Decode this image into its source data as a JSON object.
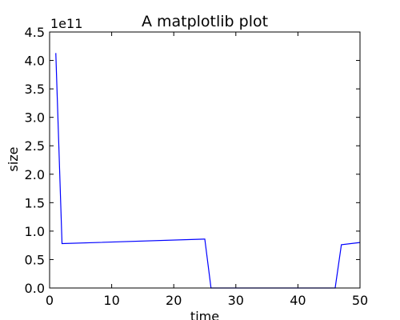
{
  "chart_data": {
    "type": "line",
    "title": "A matplotlib plot",
    "xlabel": "time",
    "ylabel": "size",
    "y_offset_label": "1e11",
    "xlim": [
      0,
      50
    ],
    "ylim": [
      0,
      4.5
    ],
    "y_scale_factor": 100000000000.0,
    "grid": false,
    "x_ticks": [
      0,
      10,
      20,
      30,
      40,
      50
    ],
    "y_ticks": [
      0.0,
      0.5,
      1.0,
      1.5,
      2.0,
      2.5,
      3.0,
      3.5,
      4.0,
      4.5
    ],
    "x_tick_labels": [
      "0",
      "10",
      "20",
      "30",
      "40",
      "50"
    ],
    "y_tick_labels": [
      "0.0",
      "0.5",
      "1.0",
      "1.5",
      "2.0",
      "2.5",
      "3.0",
      "3.5",
      "4.0",
      "4.5"
    ],
    "series": [
      {
        "color": "#0000ff",
        "x": [
          1,
          2,
          25,
          26,
          27,
          45,
          46,
          47,
          50
        ],
        "y": [
          4.13,
          0.78,
          0.86,
          0.0,
          0.0,
          0.0,
          0.0,
          0.76,
          0.8
        ]
      }
    ]
  }
}
